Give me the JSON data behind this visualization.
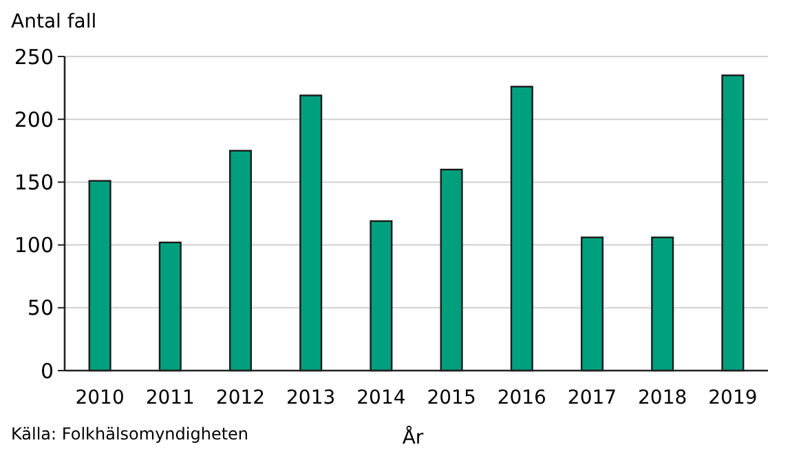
{
  "chart_data": {
    "type": "bar",
    "ylabel": "Antal fall",
    "xlabel": "År",
    "categories": [
      "2010",
      "2011",
      "2012",
      "2013",
      "2014",
      "2015",
      "2016",
      "2017",
      "2018",
      "2019"
    ],
    "values": [
      151,
      102,
      175,
      219,
      119,
      160,
      226,
      106,
      106,
      235
    ],
    "color": "#00a07e",
    "ylim": [
      0,
      250
    ],
    "yticks": [
      0,
      50,
      100,
      150,
      200,
      250
    ],
    "grid": "y",
    "annotations": [
      "Källa: Folkhälsomyndigheten"
    ]
  }
}
